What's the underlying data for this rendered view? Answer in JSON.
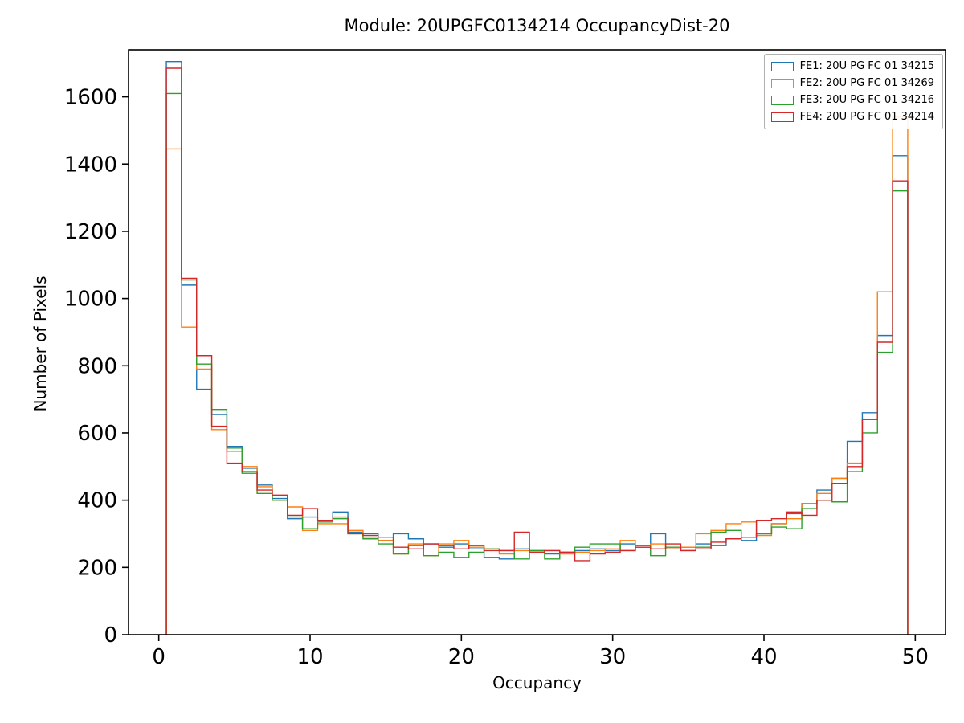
{
  "chart_data": {
    "type": "step-histogram",
    "title": "Module: 20UPGFC0134214 OccupancyDist-20",
    "xlabel": "Occupancy",
    "ylabel": "Number of Pixels",
    "xlim": [
      -2,
      52
    ],
    "ylim": [
      0,
      1740
    ],
    "xticks": [
      0,
      10,
      20,
      30,
      40,
      50
    ],
    "yticks": [
      0,
      200,
      400,
      600,
      800,
      1000,
      1200,
      1400,
      1600
    ],
    "bin_start": 0.5,
    "bin_width": 1,
    "grid": false,
    "legend_position": "upper right",
    "series": [
      {
        "name": "FE1: 20U PG FC 01 34215",
        "color": "#1f77b4",
        "values": [
          1705,
          1040,
          730,
          655,
          560,
          495,
          445,
          405,
          345,
          350,
          340,
          365,
          305,
          300,
          280,
          300,
          285,
          270,
          260,
          270,
          255,
          230,
          225,
          255,
          250,
          240,
          245,
          250,
          255,
          250,
          270,
          265,
          300,
          255,
          260,
          270,
          265,
          285,
          280,
          300,
          330,
          360,
          390,
          430,
          465,
          575,
          660,
          890,
          1425
        ]
      },
      {
        "name": "FE2: 20U PG FC 01 34269",
        "color": "#ff7f0e",
        "values": [
          1445,
          915,
          790,
          610,
          545,
          500,
          440,
          400,
          380,
          310,
          330,
          330,
          310,
          290,
          280,
          240,
          270,
          235,
          270,
          280,
          260,
          255,
          240,
          250,
          245,
          250,
          240,
          245,
          250,
          255,
          280,
          260,
          270,
          255,
          260,
          300,
          310,
          330,
          335,
          295,
          330,
          345,
          390,
          420,
          465,
          510,
          640,
          1020,
          1540
        ]
      },
      {
        "name": "FE3: 20U PG FC 01 34216",
        "color": "#2ca02c",
        "values": [
          1610,
          1055,
          805,
          670,
          555,
          480,
          420,
          400,
          350,
          315,
          335,
          345,
          300,
          285,
          270,
          240,
          265,
          235,
          245,
          230,
          245,
          255,
          250,
          225,
          250,
          225,
          245,
          260,
          270,
          270,
          250,
          265,
          235,
          260,
          250,
          260,
          305,
          310,
          290,
          300,
          320,
          315,
          375,
          400,
          395,
          485,
          600,
          840,
          1320
        ]
      },
      {
        "name": "FE4: 20U PG FC 01 34214",
        "color": "#d62728",
        "values": [
          1685,
          1060,
          830,
          620,
          510,
          485,
          430,
          415,
          355,
          375,
          340,
          350,
          300,
          295,
          290,
          260,
          255,
          270,
          265,
          255,
          265,
          250,
          250,
          305,
          245,
          250,
          245,
          220,
          240,
          245,
          250,
          260,
          255,
          270,
          250,
          255,
          275,
          285,
          290,
          340,
          345,
          365,
          355,
          400,
          450,
          500,
          640,
          870,
          1350
        ]
      }
    ]
  }
}
